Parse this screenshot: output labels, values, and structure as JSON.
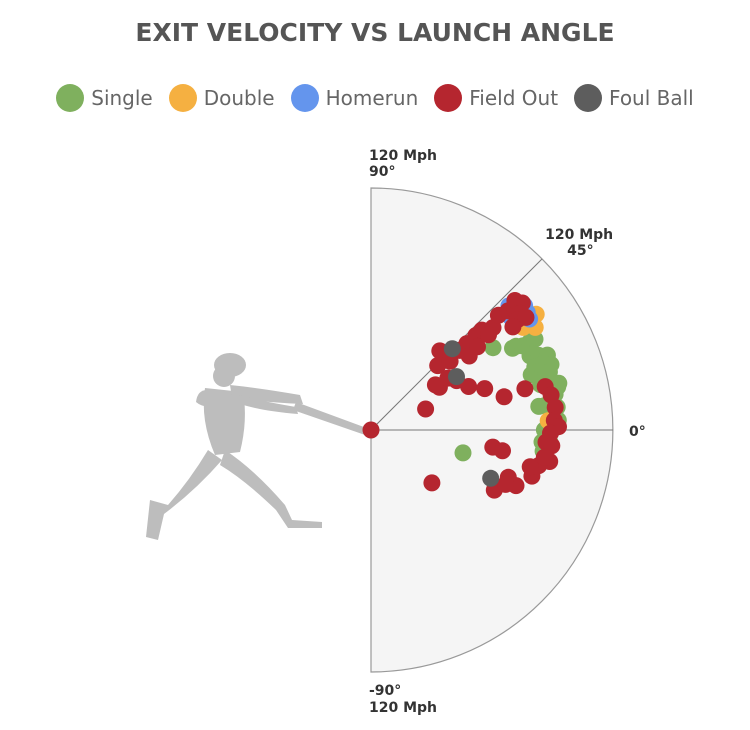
{
  "chart_data": {
    "type": "scatter",
    "coordinate_system": "polar",
    "title": "EXIT VELOCITY VS LAUNCH ANGLE",
    "radial_axis": {
      "label": "Mph",
      "range": [
        0,
        120
      ]
    },
    "angular_axis": {
      "label": "°",
      "range": [
        -90,
        90
      ]
    },
    "axis_labels": {
      "top_speed": "120 Mph",
      "top_angle": "90°",
      "mid_speed": "120 Mph",
      "mid_angle": "45°",
      "zero_angle": "0°",
      "bottom_angle": "-90°",
      "bottom_speed": "120 Mph"
    },
    "legend_position": "top",
    "series": [
      {
        "name": "Single",
        "color": "#7fb05e",
        "points": [
          [
            87,
            15
          ],
          [
            73,
            34
          ],
          [
            81,
            30
          ],
          [
            83,
            30
          ],
          [
            86,
            29
          ],
          [
            90,
            29
          ],
          [
            93,
            29
          ],
          [
            87,
            25
          ],
          [
            89,
            25
          ],
          [
            91,
            24
          ],
          [
            95,
            23
          ],
          [
            87,
            21
          ],
          [
            91,
            21
          ],
          [
            92,
            21
          ],
          [
            95,
            20
          ],
          [
            84,
            19
          ],
          [
            87,
            19
          ],
          [
            90,
            19
          ],
          [
            93,
            18
          ],
          [
            88,
            15
          ],
          [
            91,
            15
          ],
          [
            96,
            14
          ],
          [
            84,
            8
          ],
          [
            87,
            8
          ],
          [
            91,
            8
          ],
          [
            93,
            7
          ],
          [
            88,
            1
          ],
          [
            86,
            0
          ],
          [
            85,
            -4
          ],
          [
            89,
            -4
          ],
          [
            86,
            -7
          ],
          [
            93,
            3
          ],
          [
            91,
            4
          ],
          [
            93,
            11
          ],
          [
            95,
            13
          ],
          [
            91,
            18
          ],
          [
            47,
            -14
          ]
        ]
      },
      {
        "name": "Double",
        "color": "#f5b041",
        "points": [
          [
            100,
            35
          ],
          [
            94,
            36
          ],
          [
            96,
            32
          ],
          [
            91,
            34
          ],
          [
            88,
            3
          ]
        ]
      },
      {
        "name": "Homerun",
        "color": "#6495ed",
        "points": [
          [
            92,
            42
          ],
          [
            98,
            39
          ],
          [
            97,
            37
          ],
          [
            96,
            35
          ],
          [
            89,
            39
          ]
        ]
      },
      {
        "name": "Field Out",
        "color": "#b5262f",
        "points": [
          [
            0,
            0
          ],
          [
            29,
            21
          ],
          [
            46,
            44
          ],
          [
            52,
            49
          ],
          [
            53,
            44
          ],
          [
            52,
            41
          ],
          [
            59,
            42
          ],
          [
            64,
            42
          ],
          [
            70,
            42
          ],
          [
            74,
            42
          ],
          [
            79,
            40
          ],
          [
            85,
            42
          ],
          [
            90,
            41
          ],
          [
            93,
            40
          ],
          [
            96,
            42
          ],
          [
            98,
            40
          ],
          [
            94,
            38
          ],
          [
            91,
            37
          ],
          [
            95,
            36
          ],
          [
            87,
            36
          ],
          [
            61,
            37
          ],
          [
            39,
            35
          ],
          [
            49,
            30
          ],
          [
            53,
            24
          ],
          [
            40,
            32
          ],
          [
            46,
            34
          ],
          [
            60,
            20
          ],
          [
            68,
            14
          ],
          [
            79,
            15
          ],
          [
            89,
            14
          ],
          [
            91,
            11
          ],
          [
            92,
            7
          ],
          [
            91,
            3
          ],
          [
            93,
            1
          ],
          [
            89,
            -1
          ],
          [
            87,
            -4
          ],
          [
            90,
            -5
          ],
          [
            90,
            -10
          ],
          [
            85,
            -12
          ],
          [
            83,
            -16
          ],
          [
            72,
            -19
          ],
          [
            77,
            -21
          ],
          [
            68,
            -26
          ],
          [
            72,
            -22
          ],
          [
            40,
            -41
          ],
          [
            61,
            -8
          ],
          [
            66,
            -9
          ],
          [
            87,
            -9
          ],
          [
            81,
            -13
          ],
          [
            67,
            38
          ],
          [
            75,
            39
          ]
        ]
      },
      {
        "name": "Foul Ball",
        "color": "#5d5d5d",
        "points": [
          [
            50,
            32
          ],
          [
            64,
            -22
          ],
          [
            57,
            45
          ]
        ]
      }
    ]
  },
  "colors": {
    "field_fill": "#f5f5f5",
    "field_stroke": "#999999",
    "batter": "#bdbdbd"
  }
}
